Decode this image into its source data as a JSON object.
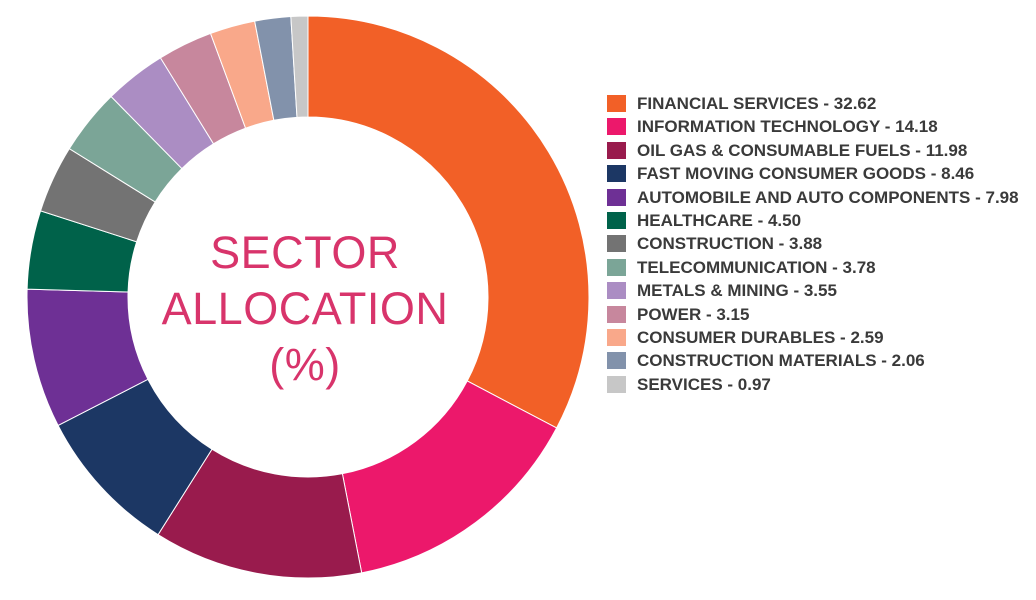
{
  "chart_data": {
    "type": "pie",
    "title_lines": [
      "SECTOR",
      "ALLOCATION",
      "(%)"
    ],
    "series": [
      {
        "label": "FINANCIAL SERVICES - 32.62",
        "value": 32.62,
        "color": "#f26027"
      },
      {
        "label": "INFORMATION TECHNOLOGY - 14.18",
        "value": 14.18,
        "color": "#ec186b"
      },
      {
        "label": "OIL GAS & CONSUMABLE FUELS - 11.98",
        "value": 11.98,
        "color": "#991b4d"
      },
      {
        "label": "FAST MOVING CONSUMER GOODS - 8.46",
        "value": 8.46,
        "color": "#1c3764"
      },
      {
        "label": "AUTOMOBILE AND AUTO COMPONENTS - 7.98",
        "value": 7.98,
        "color": "#6e3095"
      },
      {
        "label": "HEALTHCARE - 4.50",
        "value": 4.5,
        "color": "#00624a"
      },
      {
        "label": "CONSTRUCTION - 3.88",
        "value": 3.88,
        "color": "#737373"
      },
      {
        "label": "TELECOMMUNICATION - 3.78",
        "value": 3.78,
        "color": "#7ba597"
      },
      {
        "label": "METALS & MINING - 3.55",
        "value": 3.55,
        "color": "#ab8dc3"
      },
      {
        "label": "POWER - 3.15",
        "value": 3.15,
        "color": "#c7879d"
      },
      {
        "label": "CONSUMER DURABLES - 2.59",
        "value": 2.59,
        "color": "#f9a88a"
      },
      {
        "label": "CONSTRUCTION MATERIALS - 2.06",
        "value": 2.06,
        "color": "#8292ab"
      },
      {
        "label": "SERVICES - 0.97",
        "value": 0.97,
        "color": "#c7c7c7"
      }
    ],
    "legend": "right"
  }
}
